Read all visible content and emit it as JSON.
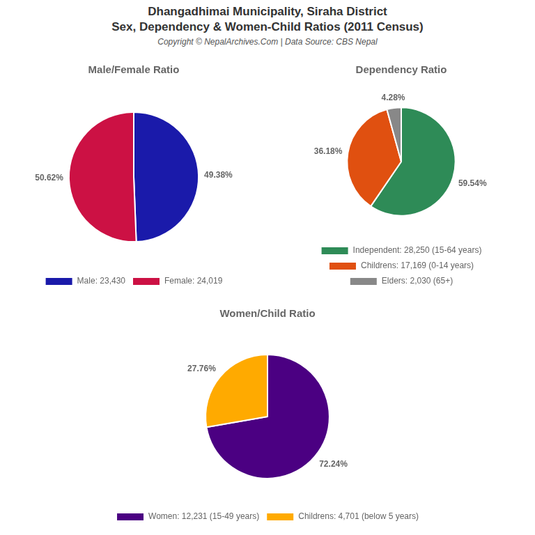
{
  "title": [
    "Dhangadhimai Municipality, Siraha District",
    "Sex, Dependency & Women-Child Ratios (2011 Census)"
  ],
  "subtitle": "Copyright © NepalArchives.Com | Data Source: CBS Nepal",
  "chart_data": [
    {
      "type": "pie",
      "title": "Male/Female Ratio",
      "categories": [
        "Male: 23,430",
        "Female: 24,019"
      ],
      "values": [
        49.38,
        50.62
      ],
      "value_labels": [
        "49.38%",
        "50.62%"
      ],
      "colors": [
        "#1a1aaa",
        "#cc1144"
      ],
      "data_labels": true,
      "legend": "bottom"
    },
    {
      "type": "pie",
      "title": "Dependency Ratio",
      "categories": [
        "Independent: 28,250 (15-64 years)",
        "Childrens: 17,169 (0-14 years)",
        "Elders: 2,030 (65+)"
      ],
      "values": [
        59.54,
        36.18,
        4.28
      ],
      "value_labels": [
        "59.54%",
        "36.18%",
        "4.28%"
      ],
      "colors": [
        "#2e8b57",
        "#e05010",
        "#888888"
      ],
      "data_labels": true,
      "legend": "bottom"
    },
    {
      "type": "pie",
      "title": "Women/Child Ratio",
      "categories": [
        "Women: 12,231 (15-49 years)",
        "Childrens: 4,701 (below 5 years)"
      ],
      "values": [
        72.24,
        27.76
      ],
      "value_labels": [
        "72.24%",
        "27.76%"
      ],
      "colors": [
        "#4b0082",
        "#ffaa00"
      ],
      "data_labels": true,
      "legend": "bottom"
    }
  ]
}
